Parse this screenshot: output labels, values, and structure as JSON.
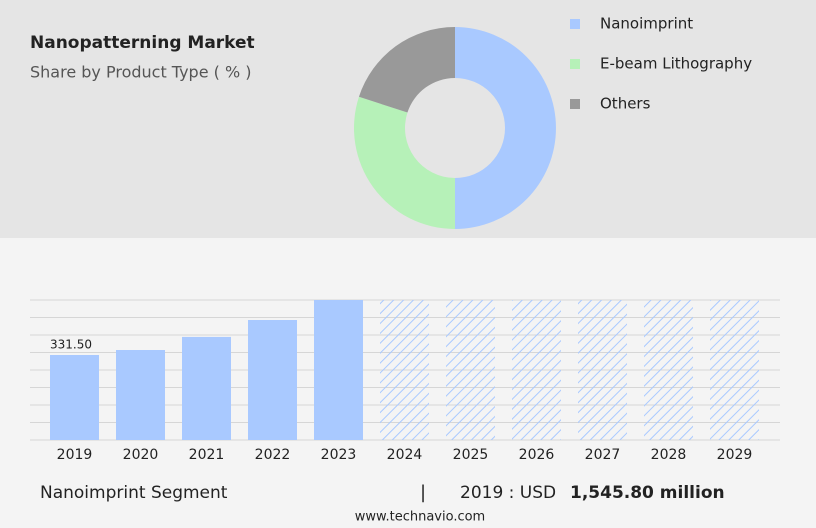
{
  "chart_data": [
    {
      "type": "donut",
      "title": "Nanopatterning Market",
      "subtitle": "Share by Product Type ( % )",
      "categories": [
        "Nanoimprint",
        "E-beam Lithography",
        "Others"
      ],
      "values": [
        50,
        30,
        20
      ],
      "colors": [
        "#a9c9ff",
        "#b6f1b8",
        "#999999"
      ]
    },
    {
      "type": "bar",
      "categories": [
        "2019",
        "2020",
        "2021",
        "2022",
        "2023",
        "2024",
        "2025",
        "2026",
        "2027",
        "2028",
        "2029"
      ],
      "values": [
        331.5,
        351,
        402,
        468,
        546,
        null,
        null,
        null,
        null,
        null,
        null
      ],
      "value_labels": [
        "331.50",
        null,
        null,
        null,
        null,
        null,
        null,
        null,
        null,
        null,
        null
      ],
      "color": "#a9c9ff",
      "forecast_color": "#a9c9ff",
      "ylim": [
        0,
        546
      ],
      "grid": true
    }
  ],
  "footer": {
    "segment": "Nanoimprint Segment",
    "separator": "|",
    "year_text": "2019 : USD",
    "amount": "1,545.80 million",
    "source": "www.technavio.com"
  }
}
